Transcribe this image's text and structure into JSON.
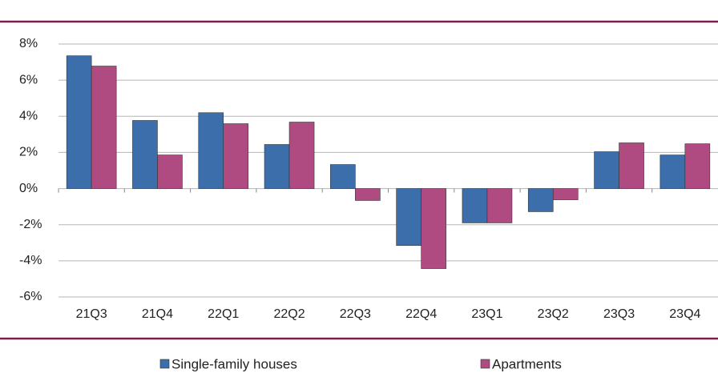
{
  "chart_data": {
    "type": "bar",
    "categories": [
      "21Q3",
      "21Q4",
      "22Q1",
      "22Q2",
      "22Q3",
      "22Q4",
      "23Q1",
      "23Q2",
      "23Q3",
      "23Q4"
    ],
    "series": [
      {
        "name": "Single-family houses",
        "color": "#3b6eab",
        "values": [
          7.35,
          3.77,
          4.2,
          2.44,
          1.33,
          -3.15,
          -1.9,
          -1.28,
          2.04,
          1.86
        ]
      },
      {
        "name": "Apartments",
        "color": "#b04b81",
        "values": [
          6.78,
          1.86,
          3.59,
          3.68,
          -0.66,
          -4.43,
          -1.9,
          -0.62,
          2.53,
          2.48
        ]
      }
    ],
    "ylim": [
      -6,
      8
    ],
    "yticks": [
      {
        "value": -6,
        "label": "-6%"
      },
      {
        "value": -4,
        "label": "-4%"
      },
      {
        "value": -2,
        "label": "-2%"
      },
      {
        "value": 0,
        "label": "0%"
      },
      {
        "value": 2,
        "label": "2%"
      },
      {
        "value": 4,
        "label": "4%"
      },
      {
        "value": 6,
        "label": "6%"
      },
      {
        "value": 8,
        "label": "8%"
      }
    ],
    "grid": true
  }
}
